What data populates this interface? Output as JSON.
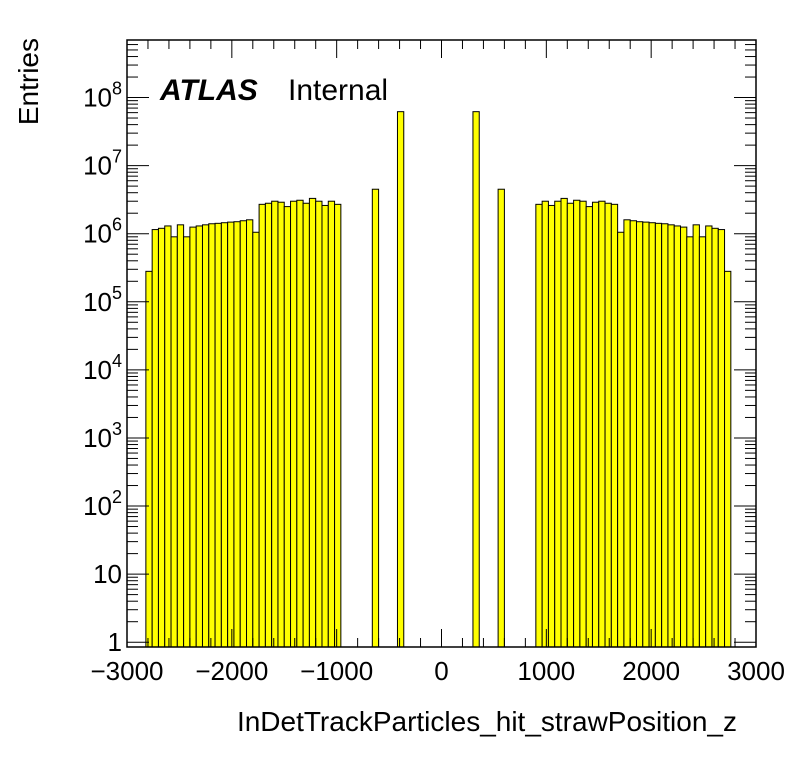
{
  "chart_data": {
    "type": "bar",
    "subtype": "histogram",
    "title": "",
    "label_main": "ATLAS",
    "label_sub": "Internal",
    "xlabel": "InDetTrackParticles_hit_strawPosition_z",
    "ylabel": "Entries",
    "xlim": [
      -3000,
      3000
    ],
    "ylim": [
      0.85,
      700000000
    ],
    "yscale": "log",
    "grid": false,
    "legend": "none",
    "fill_color": "#ffff00",
    "edge_color": "#000000",
    "x_ticks": [
      {
        "value": -3000,
        "label": "−3000"
      },
      {
        "value": -2000,
        "label": "−2000"
      },
      {
        "value": -1000,
        "label": "−1000"
      },
      {
        "value": 0,
        "label": "0"
      },
      {
        "value": 1000,
        "label": "1000"
      },
      {
        "value": 2000,
        "label": "2000"
      },
      {
        "value": 3000,
        "label": "3000"
      }
    ],
    "y_ticks": [
      {
        "value": 1,
        "base": "1",
        "exp": ""
      },
      {
        "value": 10,
        "base": "10",
        "exp": ""
      },
      {
        "value": 100,
        "base": "10",
        "exp": "2"
      },
      {
        "value": 1000,
        "base": "10",
        "exp": "3"
      },
      {
        "value": 10000,
        "base": "10",
        "exp": "4"
      },
      {
        "value": 100000,
        "base": "10",
        "exp": "5"
      },
      {
        "value": 1000000,
        "base": "10",
        "exp": "6"
      },
      {
        "value": 10000000,
        "base": "10",
        "exp": "7"
      },
      {
        "value": 100000000,
        "base": "10",
        "exp": "8"
      }
    ],
    "bin_width": 60,
    "bins": [
      {
        "x": -2790,
        "y": 280000
      },
      {
        "x": -2730,
        "y": 1150000
      },
      {
        "x": -2670,
        "y": 1200000
      },
      {
        "x": -2610,
        "y": 1300000
      },
      {
        "x": -2550,
        "y": 900000
      },
      {
        "x": -2490,
        "y": 1350000
      },
      {
        "x": -2430,
        "y": 900000
      },
      {
        "x": -2370,
        "y": 1250000
      },
      {
        "x": -2310,
        "y": 1300000
      },
      {
        "x": -2250,
        "y": 1350000
      },
      {
        "x": -2190,
        "y": 1400000
      },
      {
        "x": -2130,
        "y": 1420000
      },
      {
        "x": -2070,
        "y": 1450000
      },
      {
        "x": -2010,
        "y": 1480000
      },
      {
        "x": -1950,
        "y": 1500000
      },
      {
        "x": -1890,
        "y": 1550000
      },
      {
        "x": -1830,
        "y": 1600000
      },
      {
        "x": -1770,
        "y": 1050000
      },
      {
        "x": -1710,
        "y": 2700000
      },
      {
        "x": -1650,
        "y": 2800000
      },
      {
        "x": -1590,
        "y": 3000000
      },
      {
        "x": -1530,
        "y": 2900000
      },
      {
        "x": -1470,
        "y": 2500000
      },
      {
        "x": -1410,
        "y": 3000000
      },
      {
        "x": -1350,
        "y": 3100000
      },
      {
        "x": -1290,
        "y": 2800000
      },
      {
        "x": -1230,
        "y": 3300000
      },
      {
        "x": -1170,
        "y": 3000000
      },
      {
        "x": -1110,
        "y": 2600000
      },
      {
        "x": -1050,
        "y": 3000000
      },
      {
        "x": -990,
        "y": 2700000
      },
      {
        "x": -630,
        "y": 4500000
      },
      {
        "x": -390,
        "y": 62000000
      },
      {
        "x": 330,
        "y": 62000000
      },
      {
        "x": 570,
        "y": 4500000
      },
      {
        "x": 930,
        "y": 2700000
      },
      {
        "x": 990,
        "y": 3000000
      },
      {
        "x": 1050,
        "y": 2600000
      },
      {
        "x": 1110,
        "y": 3000000
      },
      {
        "x": 1170,
        "y": 3300000
      },
      {
        "x": 1230,
        "y": 2800000
      },
      {
        "x": 1290,
        "y": 3100000
      },
      {
        "x": 1350,
        "y": 3000000
      },
      {
        "x": 1410,
        "y": 2500000
      },
      {
        "x": 1470,
        "y": 2900000
      },
      {
        "x": 1530,
        "y": 3000000
      },
      {
        "x": 1590,
        "y": 2800000
      },
      {
        "x": 1650,
        "y": 2700000
      },
      {
        "x": 1710,
        "y": 1050000
      },
      {
        "x": 1770,
        "y": 1600000
      },
      {
        "x": 1830,
        "y": 1550000
      },
      {
        "x": 1890,
        "y": 1500000
      },
      {
        "x": 1950,
        "y": 1480000
      },
      {
        "x": 2010,
        "y": 1450000
      },
      {
        "x": 2070,
        "y": 1420000
      },
      {
        "x": 2130,
        "y": 1400000
      },
      {
        "x": 2190,
        "y": 1350000
      },
      {
        "x": 2250,
        "y": 1300000
      },
      {
        "x": 2310,
        "y": 1250000
      },
      {
        "x": 2370,
        "y": 900000
      },
      {
        "x": 2430,
        "y": 1350000
      },
      {
        "x": 2490,
        "y": 900000
      },
      {
        "x": 2550,
        "y": 1300000
      },
      {
        "x": 2610,
        "y": 1200000
      },
      {
        "x": 2670,
        "y": 1150000
      },
      {
        "x": 2730,
        "y": 280000
      }
    ]
  }
}
